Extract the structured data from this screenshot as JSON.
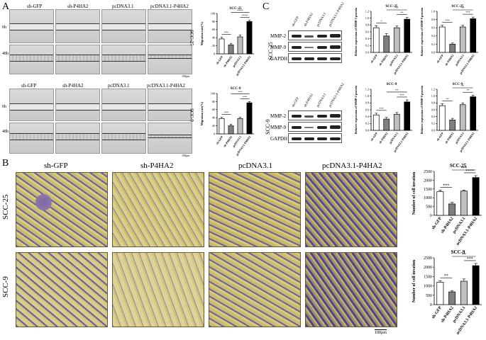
{
  "panels": {
    "A": {
      "letter": "A",
      "row_labels_top": [
        "0h",
        "48h"
      ],
      "row_labels_bottom": [
        "0h",
        "48h"
      ],
      "column_labels": [
        "sh-GFP",
        "sh-P4HA2",
        "pcDNA3.1",
        "pcDNA3.1-P4HA2"
      ],
      "cell_line_top": "SCC-25",
      "cell_line_bottom": "SCC-9",
      "scale": "100μm"
    },
    "C": {
      "letter": "C",
      "lanes": [
        "sh-GFP",
        "sh-P4HA2",
        "pcDNA3.1",
        "pcDNA3.1-P4HA2"
      ],
      "bands": [
        "MMP-2",
        "MMP-9",
        "GAPDH"
      ],
      "cell_line_top": "SCC-25",
      "cell_line_bottom": "SCC-9"
    },
    "B": {
      "letter": "B",
      "column_labels": [
        "sh-GFP",
        "sh-P4HA2",
        "pcDNA3.1",
        "pcDNA3.1-P4HA2"
      ],
      "cell_line_top": "SCC-25",
      "cell_line_bottom": "SCC-9",
      "scale": "100μm"
    }
  },
  "chart_data": [
    {
      "type": "bar",
      "title": "SCC-25",
      "ylabel": "Migration rate(%)",
      "categories": [
        "sh-GFP",
        "sh-P4HA2",
        "pcDNA3.1",
        "pcDNA3.1-P4HA2"
      ],
      "values": [
        37,
        22,
        42,
        80
      ],
      "errors": [
        4,
        4,
        5,
        3
      ],
      "ylim": [
        0,
        100
      ],
      "yticks": [
        "0",
        "20",
        "40",
        "60",
        "80",
        "100"
      ],
      "sig": [
        "***",
        "****",
        "****"
      ]
    },
    {
      "type": "bar",
      "title": "SCC-9",
      "ylabel": "Migration rate(%)",
      "categories": [
        "sh-GFP",
        "sh-P4HA2",
        "pcDNA3.1",
        "pcDNA3.1-P4HA2"
      ],
      "values": [
        38,
        20,
        38,
        77
      ],
      "errors": [
        3,
        4,
        3,
        3
      ],
      "ylim": [
        0,
        100
      ],
      "yticks": [
        "0",
        "20",
        "40",
        "60",
        "80",
        "100"
      ],
      "sig": [
        "***",
        "***",
        "***"
      ]
    },
    {
      "type": "bar",
      "title": "SCC-25",
      "ylabel": "Relative expression of MMP-2 protein",
      "categories": [
        "sh-GFP",
        "sh-P4HA2",
        "pcDNA3.1",
        "pcDNA3.1-P4HA2"
      ],
      "values": [
        0.72,
        0.48,
        0.72,
        0.97
      ],
      "errors": [
        0.06,
        0.07,
        0.05,
        0.05
      ],
      "ylim": [
        0,
        1.2
      ],
      "yticks": [
        "0.0",
        "0.2",
        "0.4",
        "0.6",
        "0.8",
        "1.0",
        "1.2"
      ],
      "sig": [
        "*",
        "**",
        "**"
      ]
    },
    {
      "type": "bar",
      "title": "SCC-25",
      "ylabel": "Relative expression of MMP-9 protein",
      "categories": [
        "sh-GFP",
        "sh-P4HA2",
        "pcDNA3.1",
        "pcDNA3.1-P4HA2"
      ],
      "values": [
        0.62,
        0.2,
        0.62,
        0.82
      ],
      "errors": [
        0.04,
        0.03,
        0.04,
        0.04
      ],
      "ylim": [
        0,
        1.0
      ],
      "yticks": [
        "0.0",
        "0.2",
        "0.4",
        "0.6",
        "0.8",
        "1.0"
      ],
      "sig": [
        "***",
        "***",
        "**"
      ]
    },
    {
      "type": "bar",
      "title": "SCC-9",
      "ylabel": "Relative expression of MMP-2 protein",
      "categories": [
        "sh-GFP",
        "sh-P4HA2",
        "pcDNA3.1",
        "pcDNA3.1-P4HA2"
      ],
      "values": [
        0.45,
        0.33,
        0.47,
        0.83
      ],
      "errors": [
        0.05,
        0.05,
        0.05,
        0.06
      ],
      "ylim": [
        0,
        1.2
      ],
      "yticks": [
        "0.0",
        "0.2",
        "0.4",
        "0.6",
        "0.8",
        "1.0",
        "1.2"
      ],
      "sig": [
        "***",
        "***",
        "**"
      ]
    },
    {
      "type": "bar",
      "title": "SCC-9",
      "ylabel": "Relative expression of MMP-9 protein",
      "categories": [
        "sh-GFP",
        "sh-P4HA2",
        "pcDNA3.1",
        "pcDNA3.1-P4HA2"
      ],
      "values": [
        0.72,
        0.3,
        0.75,
        0.98
      ],
      "errors": [
        0.06,
        0.05,
        0.05,
        0.05
      ],
      "ylim": [
        0,
        1.2
      ],
      "yticks": [
        "0.0",
        "0.2",
        "0.4",
        "0.6",
        "0.8",
        "1.0",
        "1.2"
      ],
      "sig": [
        "**",
        "**",
        "**"
      ]
    },
    {
      "type": "bar",
      "title": "SCC-25",
      "ylabel": "Number of cell invation",
      "categories": [
        "sh-GFP",
        "sh-P4HA2",
        "pcDNA3.1",
        "pcDNA3.1-P4HA2"
      ],
      "values": [
        1350,
        650,
        1380,
        2150
      ],
      "errors": [
        90,
        100,
        60,
        110
      ],
      "ylim": [
        0,
        2500
      ],
      "yticks": [
        "0",
        "500",
        "1000",
        "1500",
        "2000",
        "2500"
      ],
      "sig": [
        "***",
        "****",
        "***"
      ]
    },
    {
      "type": "bar",
      "title": "SCC-9",
      "ylabel": "Number of cell invation",
      "categories": [
        "sh-GFP",
        "sh-P4HA2",
        "pcDNA3.1",
        "pcDNA3.1-P4HA2"
      ],
      "values": [
        1200,
        680,
        1250,
        2080
      ],
      "errors": [
        80,
        70,
        120,
        120
      ],
      "ylim": [
        0,
        2500
      ],
      "yticks": [
        "0",
        "500",
        "1000",
        "1500",
        "2000",
        "2500"
      ],
      "sig": [
        "**",
        "***",
        "**"
      ]
    }
  ]
}
